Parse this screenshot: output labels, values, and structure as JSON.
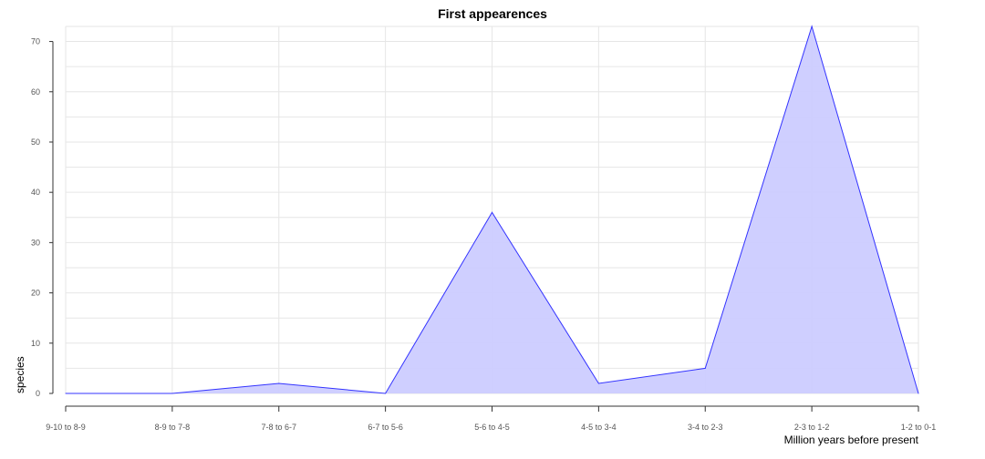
{
  "chart_data": {
    "type": "area",
    "title": "First appearences",
    "xlabel": "Million years before present",
    "ylabel": "species",
    "categories": [
      "9-10 to 8-9",
      "8-9 to 7-8",
      "7-8 to 6-7",
      "6-7 to 5-6",
      "5-6 to 4-5",
      "4-5 to 3-4",
      "3-4 to 2-3",
      "2-3 to 1-2",
      "1-2 to 0-1"
    ],
    "values": [
      0,
      0,
      2,
      0,
      36,
      2,
      5,
      73,
      0
    ],
    "ylim": [
      0,
      73
    ],
    "yticks": [
      0,
      10,
      20,
      30,
      40,
      50,
      60,
      70
    ],
    "grid": true,
    "legend": "none",
    "colors": {
      "line": "#3333ff",
      "fill": "#ccccff"
    }
  }
}
